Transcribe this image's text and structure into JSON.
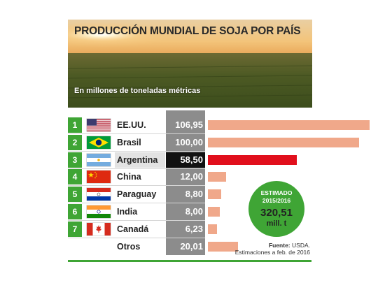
{
  "colors": {
    "accent": "#3fa535",
    "bar": "#f0a88a",
    "highlight_bar": "#e10f1c"
  },
  "header": {
    "title": "PRODUCCIÓN MUNDIAL DE SOJA POR PAÍS",
    "subtitle": "En millones de toneladas métricas"
  },
  "chart_data": {
    "type": "bar",
    "title": "PRODUCCIÓN MUNDIAL DE SOJA POR PAÍS",
    "ylabel": "En millones de toneladas métricas",
    "categories": [
      "EE.UU.",
      "Brasil",
      "Argentina",
      "China",
      "Paraguay",
      "India",
      "Canadá",
      "Otros"
    ],
    "values": [
      106.95,
      100.0,
      58.5,
      12.0,
      8.8,
      8.0,
      6.23,
      20.01
    ],
    "value_labels": [
      "106,95",
      "100,00",
      "58,50",
      "12,00",
      "8,80",
      "8,00",
      "6,23",
      "20,01"
    ],
    "ranks": [
      "1",
      "2",
      "3",
      "4",
      "5",
      "6",
      "7",
      ""
    ],
    "flags": [
      "usa-flag-icon",
      "brazil-flag-icon",
      "argentina-flag-icon",
      "china-flag-icon",
      "paraguay-flag-icon",
      "india-flag-icon",
      "canada-flag-icon",
      ""
    ],
    "highlight": "Argentina",
    "ylim": [
      0,
      110
    ]
  },
  "estimate": {
    "label_line1": "ESTIMADO",
    "label_line2": "2015/2016",
    "value": "320,51",
    "unit": "mill. t"
  },
  "source": {
    "label": "Fuente:",
    "name": "USDA.",
    "note": "Estimaciones a feb. de 2016"
  }
}
